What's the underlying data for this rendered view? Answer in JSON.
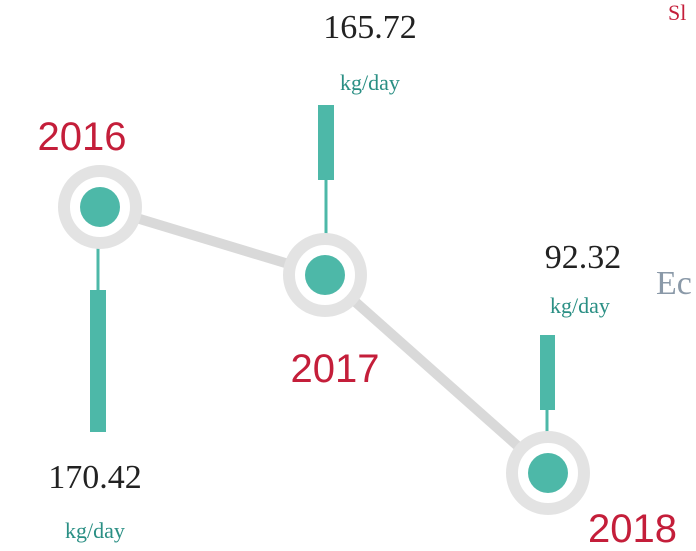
{
  "nodes": [
    {
      "year": "2016",
      "value": "170.42",
      "unit": "kg/day"
    },
    {
      "year": "2017",
      "value": "165.72",
      "unit": "kg/day"
    },
    {
      "year": "2018",
      "value": "92.32",
      "unit": "kg/day"
    }
  ],
  "fragments": [
    "Sl",
    "Ec"
  ]
}
